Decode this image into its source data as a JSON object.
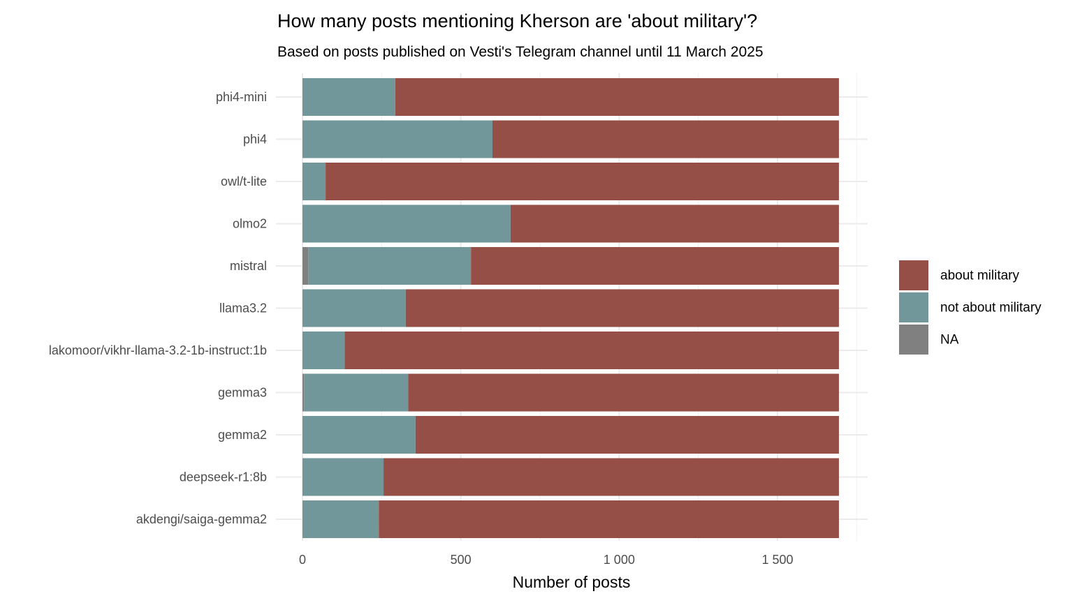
{
  "chart_data": {
    "type": "bar",
    "orientation": "horizontal",
    "stacked": true,
    "title": "How many posts mentioning Kherson are 'about military'?",
    "subtitle": "Based on posts published on Vesti's Telegram channel until 11 March 2025",
    "xlabel": "Number of posts",
    "ylabel": "",
    "xlim": [
      0,
      1700
    ],
    "x_ticks": [
      0,
      500,
      1000,
      1500
    ],
    "x_tick_labels": [
      "0",
      "500",
      "1 000",
      "1 500"
    ],
    "grid": true,
    "legend_position": "right",
    "categories": [
      "phi4-mini",
      "phi4",
      "owl/t-lite",
      "olmo2",
      "mistral",
      "llama3.2",
      "lakomoor/vikhr-llama-3.2-1b-instruct:1b",
      "gemma3",
      "gemma2",
      "deepseek-r1:8b",
      "akdengi/saiga-gemma2"
    ],
    "series": [
      {
        "name": "NA",
        "color": "#808080",
        "values": [
          0,
          0,
          0,
          0,
          18,
          0,
          0,
          5,
          0,
          0,
          0
        ]
      },
      {
        "name": "not about military",
        "color": "#72979a",
        "values": [
          293,
          600,
          73,
          657,
          514,
          326,
          133,
          329,
          357,
          256,
          241
        ]
      },
      {
        "name": "about military",
        "color": "#964f47",
        "values": [
          1401,
          1094,
          1621,
          1037,
          1162,
          1368,
          1561,
          1360,
          1337,
          1438,
          1453
        ]
      }
    ],
    "legend_order": [
      "about military",
      "not about military",
      "NA"
    ]
  }
}
